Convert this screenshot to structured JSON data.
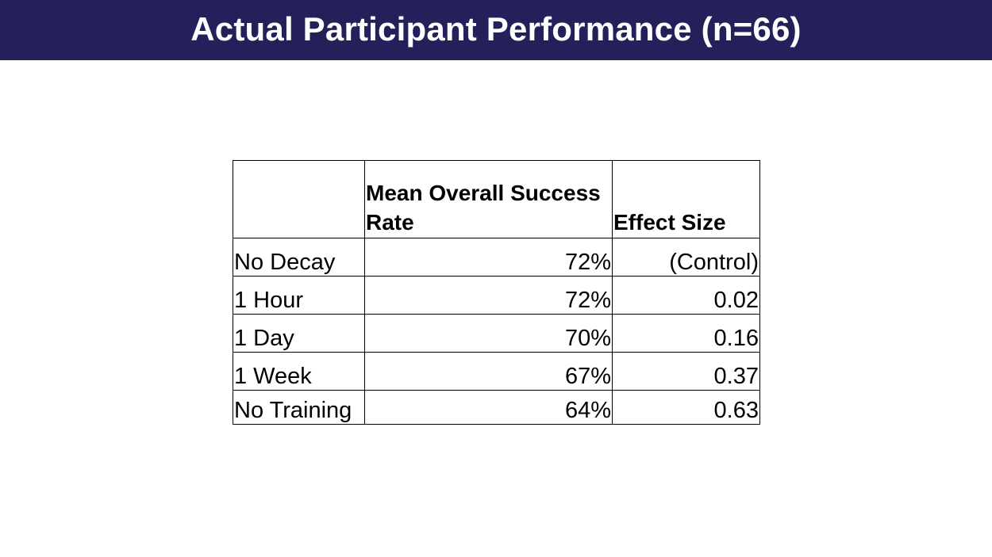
{
  "title": "Actual Participant Performance (n=66)",
  "table": {
    "headers": [
      "",
      "Mean Overall Success Rate",
      "Effect Size"
    ],
    "rows": [
      {
        "condition": "No Decay",
        "success_rate": "72%",
        "effect_size": "(Control)"
      },
      {
        "condition": "1 Hour",
        "success_rate": "72%",
        "effect_size": "0.02"
      },
      {
        "condition": "1 Day",
        "success_rate": "70%",
        "effect_size": "0.16"
      },
      {
        "condition": "1 Week",
        "success_rate": "67%",
        "effect_size": "0.37"
      },
      {
        "condition": "No Training",
        "success_rate": "64%",
        "effect_size": "0.63"
      }
    ]
  },
  "colors": {
    "title_bar": "#23205a",
    "title_text": "#ffffff",
    "table_border": "#000000"
  }
}
